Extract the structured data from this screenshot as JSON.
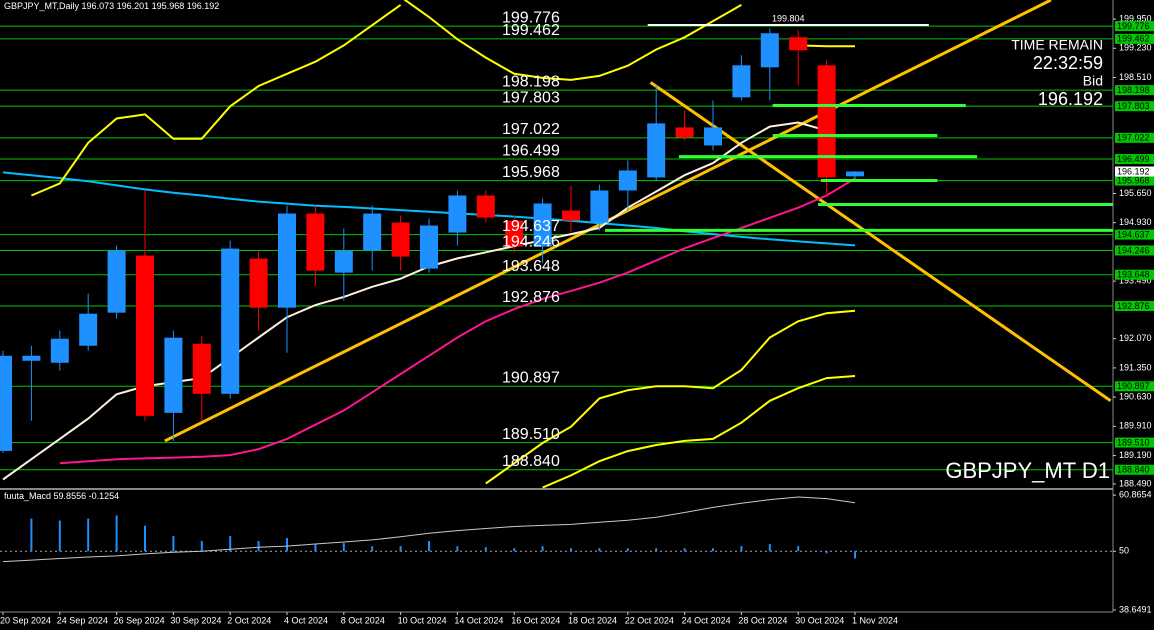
{
  "chart_data": [
    {
      "type": "candlestick",
      "title": "GBPJPY_MT,Daily",
      "watermark": "GBPJPY_MT D1",
      "info": {
        "label": "TIME REMAIN",
        "time": "22:32:59",
        "bid_label": "Bid"
      },
      "categories": [
        "20 Sep 2024",
        null,
        "24 Sep 2024",
        null,
        "26 Sep 2024",
        null,
        "30 Sep 2024",
        null,
        "2 Oct 2024",
        null,
        "4 Oct 2024",
        null,
        "8 Oct 2024",
        null,
        "10 Oct 2024",
        null,
        "14 Oct 2024",
        null,
        "16 Oct 2024",
        null,
        "18 Oct 2024",
        null,
        "22 Oct 2024",
        null,
        "24 Oct 2024",
        null,
        "28 Oct 2024",
        null,
        "30 Oct 2024",
        null,
        "1 Nov 2024"
      ],
      "open": [
        189.304,
        191.527,
        191.477,
        191.897,
        192.712,
        194.119,
        190.243,
        191.947,
        190.712,
        194.045,
        192.835,
        195.156,
        193.699,
        194.243,
        194.934,
        193.798,
        194.687,
        195.601,
        194.983,
        194.341,
        195.23,
        194.934,
        195.724,
        196.045,
        197.279,
        196.835,
        198.02,
        198.761,
        199.502,
        198.81,
        196.073
      ],
      "high": [
        191.774,
        191.897,
        192.268,
        193.181,
        194.366,
        195.724,
        192.268,
        192.144,
        194.489,
        194.243,
        195.354,
        195.354,
        194.786,
        195.354,
        195.107,
        195.033,
        195.724,
        195.724,
        195.107,
        195.527,
        195.848,
        195.872,
        196.465,
        198.316,
        197.699,
        197.946,
        199.057,
        199.724,
        199.674,
        198.934,
        196.201
      ],
      "low": [
        189.255,
        190.045,
        191.28,
        191.774,
        192.564,
        190.045,
        189.551,
        190.045,
        190.589,
        192.268,
        191.724,
        193.378,
        193.008,
        193.749,
        193.749,
        193.699,
        194.366,
        194.934,
        194.193,
        193.946,
        194.687,
        194.736,
        195.23,
        195.971,
        196.958,
        196.712,
        197.946,
        197.946,
        198.316,
        195.601,
        195.968
      ],
      "close": [
        191.65,
        191.65,
        192.07,
        192.687,
        194.243,
        190.169,
        192.095,
        190.712,
        194.292,
        192.835,
        195.156,
        193.749,
        194.243,
        195.156,
        194.094,
        194.86,
        195.601,
        195.057,
        194.341,
        195.403,
        194.983,
        195.724,
        196.218,
        197.378,
        197.033,
        197.279,
        198.81,
        199.6,
        199.181,
        196.045,
        196.192
      ],
      "up_color": "#1e90ff",
      "down_color": "#ff0000",
      "ylim": [
        188.39,
        200.42
      ],
      "yticks": [
        {
          "value": 199.95,
          "label": "199.950"
        },
        {
          "value": 199.23,
          "label": "199.230"
        },
        {
          "value": 198.51,
          "label": "198.510"
        },
        {
          "value": 195.65,
          "label": "195.650"
        },
        {
          "value": 194.93,
          "label": "194.930"
        },
        {
          "value": 193.49,
          "label": "193.490"
        },
        {
          "value": 192.07,
          "label": "192.070"
        },
        {
          "value": 191.35,
          "label": "191.350"
        },
        {
          "value": 190.63,
          "label": "190.630"
        },
        {
          "value": 189.91,
          "label": "189.910"
        },
        {
          "value": 189.19,
          "label": "189.190"
        },
        {
          "value": 188.49,
          "label": "188.490"
        }
      ],
      "levels": [
        199.776,
        199.462,
        198.198,
        197.803,
        197.022,
        196.499,
        195.968,
        194.637,
        194.246,
        193.648,
        192.876,
        190.897,
        {
          "value": 189.51,
          "label": "189.510"
        },
        {
          "value": 188.84,
          "label": "188.840"
        }
      ],
      "level_color": "#00c800",
      "high_marker": {
        "value": 199.804,
        "x": [
          22.7,
          32.6
        ]
      },
      "support_lines": [
        {
          "x": [
            27.1,
            33.9
          ],
          "value": 197.82
        },
        {
          "x": [
            27.1,
            32.9
          ],
          "value": 197.08
        },
        {
          "x": [
            23.8,
            34.3
          ],
          "value": 196.56
        },
        {
          "x": [
            28.8,
            32.9
          ],
          "value": 195.97
        },
        {
          "x": [
            28.7,
            39.1
          ],
          "value": 195.38
        },
        {
          "x": [
            21.2,
            39.1
          ],
          "value": 194.74
        }
      ],
      "trendlines": [
        {
          "x": [
            5.7,
            36.9
          ],
          "y": [
            189.55,
            200.42
          ]
        },
        {
          "x": [
            22.8,
            39.0
          ],
          "y": [
            198.39,
            190.54
          ]
        }
      ],
      "trend_color": "#ffc000",
      "overlays": [
        {
          "color": "#00bfff",
          "values": [
            196.17,
            196.1,
            196.03,
            195.95,
            195.85,
            195.75,
            195.67,
            195.6,
            195.52,
            195.45,
            195.4,
            195.35,
            195.32,
            195.28,
            195.24,
            195.2,
            195.16,
            195.12,
            195.08,
            195.03,
            194.98,
            194.92,
            194.86,
            194.8,
            194.72,
            194.65,
            194.58,
            194.52,
            194.47,
            194.42,
            194.37
          ]
        },
        {
          "color": "#ff1493",
          "values": [
            null,
            null,
            189.0,
            189.05,
            189.1,
            189.12,
            189.14,
            189.16,
            189.2,
            189.35,
            189.6,
            189.95,
            190.3,
            190.75,
            191.2,
            191.65,
            192.1,
            192.5,
            192.8,
            193.05,
            193.25,
            193.45,
            193.7,
            194.0,
            194.3,
            194.55,
            194.8,
            195.05,
            195.3,
            195.6,
            196.02
          ]
        },
        {
          "color": "#fff0dc",
          "values": [
            188.6,
            189.1,
            189.6,
            190.1,
            190.7,
            190.9,
            191.0,
            191.1,
            191.6,
            192.1,
            192.6,
            192.9,
            193.1,
            193.35,
            193.55,
            193.85,
            194.05,
            194.2,
            194.35,
            194.5,
            194.65,
            194.8,
            195.3,
            195.7,
            196.1,
            196.4,
            196.9,
            197.3,
            197.4,
            197.2,
            null
          ]
        },
        {
          "color": "#ffff00",
          "values": [
            null,
            195.6,
            195.9,
            196.9,
            197.5,
            197.6,
            197.0,
            197.0,
            197.8,
            198.3,
            198.6,
            198.9,
            199.3,
            199.8,
            200.3,
            null,
            null,
            null,
            null,
            null,
            null,
            null,
            null,
            null,
            null,
            null,
            null,
            null,
            null,
            null,
            null
          ]
        },
        {
          "color": "#ffff00",
          "values": [
            null,
            null,
            null,
            null,
            null,
            null,
            null,
            null,
            null,
            null,
            null,
            null,
            null,
            null,
            200.5,
            200.0,
            199.45,
            199.0,
            198.6,
            198.5,
            198.45,
            198.55,
            198.8,
            199.2,
            199.5,
            199.9,
            200.3,
            null,
            199.3,
            199.28,
            199.28
          ]
        },
        {
          "color": "#ffff00",
          "values": [
            null,
            null,
            null,
            null,
            null,
            null,
            null,
            null,
            null,
            null,
            null,
            null,
            null,
            null,
            null,
            null,
            null,
            188.5,
            189.0,
            189.5,
            189.9,
            190.6,
            190.8,
            190.9,
            190.9,
            190.85,
            191.3,
            192.1,
            192.5,
            192.7,
            192.76
          ]
        },
        {
          "color": "#ffff00",
          "values": [
            null,
            null,
            null,
            null,
            null,
            null,
            null,
            null,
            null,
            null,
            null,
            null,
            null,
            null,
            null,
            null,
            null,
            null,
            null,
            188.4,
            188.7,
            189.05,
            189.3,
            189.45,
            189.55,
            189.6,
            190.0,
            190.54,
            190.85,
            191.1,
            191.15
          ]
        }
      ]
    },
    {
      "type": "macd",
      "title": "fuuta_Macd",
      "indicator_values": [
        59.8556,
        -0.1254
      ],
      "baseline": 50,
      "ylim": [
        38.25,
        61.86
      ],
      "yticks": [
        60.8654,
        50,
        38.6491
      ],
      "histogram": {
        "color": "#1e90ff",
        "values": [
          null,
          56.34,
          55.94,
          56.34,
          56.93,
          54.95,
          52.97,
          51.98,
          52.97,
          51.98,
          52.57,
          51.39,
          51.58,
          50.99,
          50.99,
          51.98,
          50.99,
          50.79,
          50.59,
          50.99,
          50.59,
          50.59,
          50.59,
          50.59,
          50.59,
          50.59,
          50.99,
          51.39,
          50.99,
          49.61,
          48.61
        ]
      },
      "signal": {
        "color": "#c8c8c8",
        "values": [
          48.0,
          48.3,
          48.6,
          48.9,
          49.1,
          49.5,
          49.8,
          50.0,
          50.4,
          50.8,
          51.0,
          51.4,
          51.8,
          52.2,
          52.8,
          53.5,
          54.0,
          54.4,
          54.8,
          55.0,
          55.2,
          55.6,
          56.0,
          56.6,
          57.5,
          58.5,
          59.3,
          60.0,
          60.5,
          60.2,
          59.4
        ]
      }
    }
  ]
}
